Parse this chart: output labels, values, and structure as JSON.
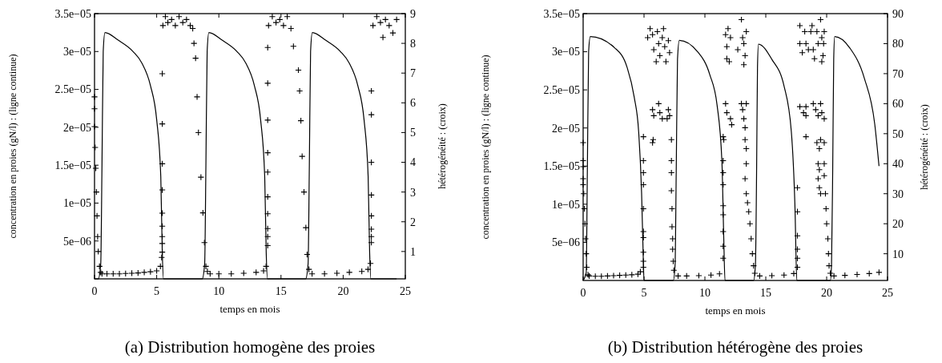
{
  "chart_data": [
    {
      "type": "line",
      "title": "(a) Distribution homogène des proies",
      "xlabel": "temps en mois",
      "ylabel": "concentration en proies (gN/l) : (ligne continue)",
      "y2label": "hétérogénéité : (croix)",
      "xlim": [
        0,
        25
      ],
      "xticks": [
        0,
        5,
        10,
        15,
        20,
        25
      ],
      "ylim": [
        0,
        3.5e-05
      ],
      "yticks": [
        {
          "value": 5e-06,
          "label": "5e−06"
        },
        {
          "value": 1e-05,
          "label": "1e−05"
        },
        {
          "value": 1.5e-05,
          "label": "1.5e−05"
        },
        {
          "value": 2e-05,
          "label": "2e−05"
        },
        {
          "value": 2.5e-05,
          "label": "2.5e−05"
        },
        {
          "value": 3e-05,
          "label": "3e−05"
        },
        {
          "value": 3.5e-05,
          "label": "3.5e−05"
        }
      ],
      "y2lim": [
        0.08,
        9
      ],
      "y2ticks": [
        1,
        2,
        3,
        4,
        5,
        6,
        7,
        8,
        9
      ],
      "grid": false,
      "series": [
        {
          "color": "#000000",
          "line_style": "solid",
          "x": [
            0,
            0.3,
            0.5,
            0.6,
            0.7,
            0.84,
            1.9,
            3.1,
            3.8,
            4.5,
            5.0,
            5.33,
            5.45,
            5.55,
            8.3,
            8.66,
            8.86,
            8.96,
            9.06,
            9.2,
            10.26,
            11.46,
            12.16,
            12.86,
            13.36,
            13.69,
            13.81,
            13.91,
            16.6,
            16.98,
            17.18,
            17.28,
            17.38,
            17.52,
            18.58,
            19.78,
            20.48,
            21.18,
            21.68,
            22.01,
            22.13,
            22.23,
            24.3
          ],
          "values": [
            0,
            0,
            2e-06,
            1.5e-05,
            3e-05,
            3.25e-05,
            3.15e-05,
            3e-05,
            2.85e-05,
            2.55e-05,
            2.1e-05,
            1.35e-05,
            3.5e-06,
            0,
            0,
            0,
            2e-06,
            1.5e-05,
            3e-05,
            3.25e-05,
            3.15e-05,
            3e-05,
            2.85e-05,
            2.55e-05,
            2.1e-05,
            1.35e-05,
            3.5e-06,
            0,
            0,
            0,
            2e-06,
            1.5e-05,
            3e-05,
            3.25e-05,
            3.15e-05,
            3e-05,
            2.85e-05,
            2.55e-05,
            2.1e-05,
            1.35e-05,
            3.5e-06,
            0,
            0
          ]
        },
        {
          "type": "scatter",
          "axis": "y2",
          "marker": "cross",
          "color": "#000000",
          "x": [
            0,
            0,
            0,
            0.05,
            0.1,
            0.15,
            0.2,
            0.25,
            0.3,
            0.4,
            0.5,
            0.6,
            1,
            1.5,
            2,
            2.5,
            3,
            3.5,
            4,
            4.5,
            5,
            5.3,
            5.4,
            5.45,
            5.45,
            5.45,
            5.45,
            5.45,
            5.45,
            5.45,
            5.45,
            5.45,
            5.5,
            5.7,
            5.9,
            6.2,
            6.5,
            6.8,
            7.1,
            7.4,
            7.7,
            7.9,
            8.0,
            8.13,
            8.25,
            8.36,
            8.56,
            8.72,
            8.84,
            8.96,
            9.08,
            9.3,
            10,
            11,
            12,
            13,
            13.6,
            13.8,
            13.93,
            13.93,
            13.93,
            13.93,
            13.93,
            13.93,
            13.93,
            13.93,
            13.93,
            13.93,
            14,
            14.3,
            14.6,
            14.9,
            15.2,
            15.5,
            15.8,
            16.0,
            16.4,
            16.5,
            16.6,
            16.7,
            16.85,
            17.0,
            17.1,
            17.25,
            17.5,
            18.5,
            19.5,
            20.5,
            21.5,
            22.0,
            22.2,
            22.27,
            22.27,
            22.27,
            22.27,
            22.27,
            22.27,
            22.27,
            22.27,
            22.4,
            22.7,
            23.0,
            23.2,
            23.4,
            23.7,
            24.0,
            24.3
          ],
          "values": [
            6.2,
            5.8,
            5.2,
            4.5,
            3.8,
            3.0,
            2.2,
            1.5,
            1.0,
            0.5,
            0.3,
            0.25,
            0.25,
            0.25,
            0.25,
            0.26,
            0.27,
            0.28,
            0.3,
            0.32,
            0.35,
            0.5,
            0.8,
            6.98,
            5.29,
            3.95,
            3.07,
            2.29,
            1.85,
            1.5,
            1.27,
            0.98,
            8.6,
            8.9,
            8.7,
            8.8,
            8.6,
            8.9,
            8.7,
            8.8,
            8.6,
            8.5,
            8.0,
            7.5,
            6.2,
            5.0,
            3.5,
            2.3,
            1.3,
            0.5,
            0.33,
            0.25,
            0.25,
            0.25,
            0.27,
            0.3,
            0.35,
            0.5,
            7.86,
            6.66,
            5.42,
            4.32,
            3.67,
            2.84,
            2.27,
            1.77,
            1.5,
            1.2,
            8.6,
            8.9,
            8.7,
            8.8,
            8.6,
            8.9,
            8.5,
            7.9,
            7.1,
            6.4,
            5.4,
            4.2,
            3.0,
            1.8,
            0.9,
            0.4,
            0.25,
            0.25,
            0.27,
            0.3,
            0.33,
            0.4,
            0.6,
            6.4,
            5.6,
            4.0,
            2.9,
            2.2,
            1.75,
            1.5,
            1.3,
            8.6,
            8.9,
            8.7,
            8.2,
            8.8,
            8.6,
            8.35,
            8.8
          ]
        }
      ]
    },
    {
      "type": "line",
      "title": "(b) Distribution hétérogène des proies",
      "xlabel": "temps en mois",
      "ylabel": "concentration en proies (gN/l) : (ligne continue)",
      "y2label": "hétérogénéité : (croix)",
      "xlim": [
        0,
        25
      ],
      "xticks": [
        0,
        5,
        10,
        15,
        20,
        25
      ],
      "ylim": [
        0,
        3.5e-05
      ],
      "yticks": [
        {
          "value": 5e-06,
          "label": "5e−06"
        },
        {
          "value": 1e-05,
          "label": "1e−05"
        },
        {
          "value": 1.5e-05,
          "label": "1.5e−05"
        },
        {
          "value": 2e-05,
          "label": "2e−05"
        },
        {
          "value": 2.5e-05,
          "label": "2.5e−05"
        },
        {
          "value": 3e-05,
          "label": "3e−05"
        },
        {
          "value": 3.5e-05,
          "label": "3.5e−05"
        }
      ],
      "y2lim": [
        1.1,
        90
      ],
      "y2ticks": [
        10,
        20,
        30,
        40,
        50,
        60,
        70,
        80,
        90
      ],
      "grid": false,
      "series": [
        {
          "color": "#000000",
          "line_style": "solid",
          "x": [
            0,
            0.25,
            0.35,
            0.45,
            0.59,
            2.6,
            3.6,
            4.2,
            4.56,
            4.8,
            4.93,
            5.0,
            7.4,
            7.55,
            7.65,
            7.75,
            7.9,
            9.4,
            10.4,
            11.0,
            11.4,
            11.55,
            11.65,
            14.0,
            14.15,
            14.25,
            14.32,
            14.4,
            15.5,
            16.5,
            17.1,
            17.4,
            17.55,
            20.3,
            20.4,
            20.5,
            20.58,
            20.66,
            21.9,
            23.1,
            23.95,
            24.3
          ],
          "values": [
            0,
            1e-06,
            1.5e-05,
            3e-05,
            3.2e-05,
            3.05e-05,
            2.8e-05,
            2.4e-05,
            1.95e-05,
            1.15e-05,
            3.5e-06,
            0,
            0,
            2e-06,
            1.5e-05,
            2.9e-05,
            3.15e-05,
            3e-05,
            2.7e-05,
            2.3e-05,
            1.55e-05,
            5.5e-06,
            0,
            0,
            2e-06,
            1.5e-05,
            2.8e-05,
            3.1e-05,
            2.9e-05,
            2.55e-05,
            1.95e-05,
            9.5e-06,
            0,
            0,
            2e-06,
            1.5e-05,
            2.9e-05,
            3.2e-05,
            3.05e-05,
            2.65e-05,
            2.05e-05,
            1.5e-05
          ]
        },
        {
          "type": "scatter",
          "axis": "y2",
          "marker": "cross",
          "color": "#000000",
          "x": [
            0,
            0,
            0,
            0,
            0,
            0.05,
            0.1,
            0.15,
            0.2,
            0.25,
            0.3,
            0.4,
            0.5,
            1,
            1.5,
            2,
            2.5,
            3,
            3.5,
            4,
            4.5,
            4.7,
            4.95,
            4.95,
            4.95,
            4.95,
            4.95,
            4.95,
            4.95,
            4.95,
            4.95,
            4.95,
            5.3,
            5.5,
            5.7,
            5.8,
            6.0,
            6.1,
            6.2,
            6.3,
            6.5,
            6.6,
            6.7,
            6.8,
            7.0,
            7.1,
            5.7,
            5.8,
            6.2,
            6.3,
            6.5,
            7.0,
            7.1,
            6.9,
            5.7,
            5.75,
            7.25,
            7.25,
            7.25,
            7.25,
            7.3,
            7.3,
            7.35,
            7.35,
            7.4,
            7.45,
            7.8,
            8.5,
            9.5,
            10.5,
            11.2,
            11.5,
            11.5,
            11.5,
            11.5,
            11.5,
            11.5,
            11.5,
            11.5,
            11.5,
            11.7,
            11.8,
            11.9,
            12.1,
            11.8,
            12.0,
            11.7,
            11.8,
            12.1,
            12.2,
            11.55,
            12.7,
            13.0,
            13.1,
            13.2,
            13.3,
            13.4,
            13.2,
            13.0,
            13.1,
            13.2,
            13.3,
            13.4,
            13.3,
            13.4,
            13.4,
            13.3,
            13.4,
            13.5,
            13.6,
            13.7,
            13.8,
            13.9,
            14.0,
            14.1,
            14.5,
            15.5,
            16.5,
            17.3,
            17.6,
            17.6,
            17.6,
            17.6,
            17.6,
            17.6,
            17.8,
            17.8,
            18.0,
            18.2,
            18.3,
            18.5,
            18.7,
            18.8,
            18.9,
            19.0,
            19.2,
            19.3,
            19.5,
            19.6,
            19.7,
            19.8,
            19.75,
            19.6,
            17.8,
            18.1,
            18.3,
            18.3,
            18.9,
            19.1,
            19.3,
            19.5,
            19.6,
            19.8,
            18.3,
            19.2,
            19.4,
            19.5,
            19.8,
            19.3,
            19.4,
            19.3,
            19.4,
            19.5,
            19.8,
            19.8,
            19.9,
            19.95,
            20.0,
            20.1,
            20.15,
            20.2,
            20.3,
            20.6,
            21.5,
            22.5,
            23.5,
            24.3
          ],
          "values": [
            47,
            41,
            39,
            35,
            33,
            30,
            25,
            20,
            15,
            10,
            5.5,
            3,
            2.6,
            2.5,
            2.5,
            2.6,
            2.7,
            2.8,
            2.9,
            3.0,
            3.2,
            4,
            49,
            41,
            37,
            33,
            25,
            17.4,
            15.4,
            10.5,
            7.5,
            5.5,
            82,
            85,
            83,
            78,
            74,
            84,
            80,
            76,
            82,
            85,
            79,
            74,
            81,
            77,
            58,
            56,
            60,
            57,
            55,
            58,
            56,
            55,
            47,
            48,
            48,
            41,
            37,
            31,
            25,
            19,
            15,
            11.5,
            7.5,
            4.5,
            2.6,
            2.6,
            2.7,
            2.9,
            3.3,
            49,
            41,
            37,
            33,
            26,
            23,
            17.4,
            12.5,
            8.5,
            83,
            79,
            85,
            82,
            75,
            74,
            60,
            57,
            55,
            53,
            48,
            78,
            88,
            82,
            80,
            76,
            84,
            73,
            60,
            58,
            55,
            52,
            60,
            48,
            45,
            40,
            35,
            30,
            27,
            24,
            20,
            15,
            10,
            6,
            3.5,
            2.6,
            2.7,
            2.9,
            3.4,
            32,
            24,
            16,
            11.5,
            8.5,
            5.5,
            86,
            80,
            77,
            84,
            80,
            78,
            84,
            86,
            78,
            75,
            84,
            80,
            88,
            82,
            76,
            84,
            80,
            74,
            59,
            57,
            59,
            56,
            60,
            58,
            56,
            60,
            57,
            55,
            49,
            47,
            45,
            48,
            47,
            40,
            38,
            35,
            32,
            30,
            40,
            36,
            30,
            25,
            20,
            15,
            10,
            6,
            3.5,
            2.6,
            2.8,
            3.1,
            3.4,
            3.8
          ]
        }
      ]
    }
  ]
}
